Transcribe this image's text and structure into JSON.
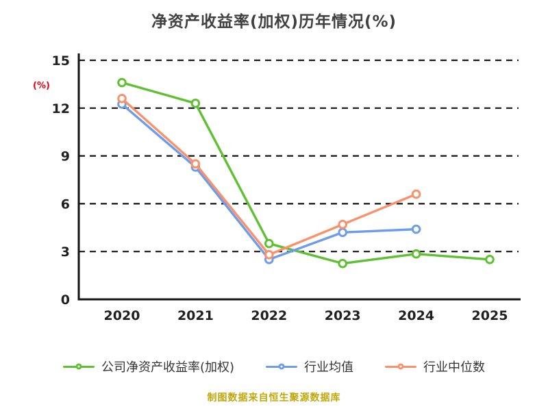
{
  "chart_data": {
    "type": "line",
    "title": "净资产收益率(加权)历年情况(%)",
    "ylabel": "(%)",
    "xlabel": "",
    "categories": [
      "2020",
      "2021",
      "2022",
      "2023",
      "2024",
      "2025"
    ],
    "ylim": [
      0,
      15
    ],
    "yticks": [
      0,
      3,
      6,
      9,
      12,
      15
    ],
    "grid": "horizontal-dashed",
    "legend_position": "bottom",
    "series": [
      {
        "id": "company-roe",
        "name": "公司净资产收益率(加权)",
        "color": "#5fc131",
        "values": [
          13.6,
          12.3,
          3.5,
          2.25,
          2.85,
          2.5
        ]
      },
      {
        "id": "industry-mean",
        "name": "行业均值",
        "color": "#6d9ceb",
        "values": [
          12.25,
          8.3,
          2.5,
          4.2,
          4.4,
          null
        ]
      },
      {
        "id": "industry-median",
        "name": "行业中位数",
        "color": "#f9926b",
        "values": [
          12.6,
          8.5,
          2.8,
          4.7,
          6.6,
          null
        ]
      }
    ]
  },
  "footer": {
    "note": "制图数据来自恒生聚源数据库"
  }
}
